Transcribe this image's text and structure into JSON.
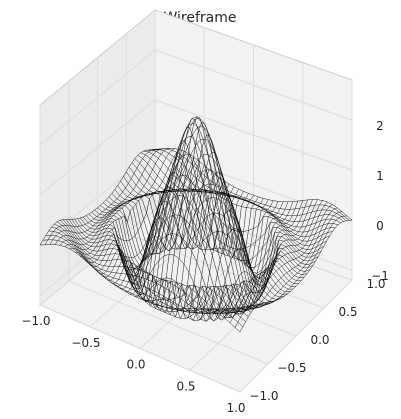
{
  "chart_data": {
    "type": "surface-wireframe",
    "title": "Wireframe",
    "xlabel": "",
    "ylabel": "",
    "zlabel": "",
    "x_ticks": [
      "−1.0",
      "−0.5",
      "0.0",
      "0.5",
      "1.0"
    ],
    "y_ticks": [
      "−1.0",
      "−0.5",
      "0.0",
      "0.5",
      "1.0"
    ],
    "z_ticks": [
      "−1",
      "0",
      "1",
      "2"
    ],
    "xlim": [
      -1,
      1
    ],
    "ylim": [
      -1,
      1
    ],
    "zlim": [
      -1.2,
      2.8
    ],
    "grid": true,
    "surface": {
      "function": "2.5*cos(r)*exp(-0.1*r^2)*... approximated as peak 2.4 at center, ring trough -1 at r=0.55",
      "peak_z": 2.4,
      "ring_trough_z": -1.0,
      "outer_level_z": 0.0,
      "ring_radius": 0.55,
      "line_color": "#000000"
    },
    "colors": {
      "pane": "#f2f2f2",
      "pane_dark": "#ebebeb",
      "grid": "#dcdcdc",
      "edge": "#cfcfcf"
    }
  }
}
